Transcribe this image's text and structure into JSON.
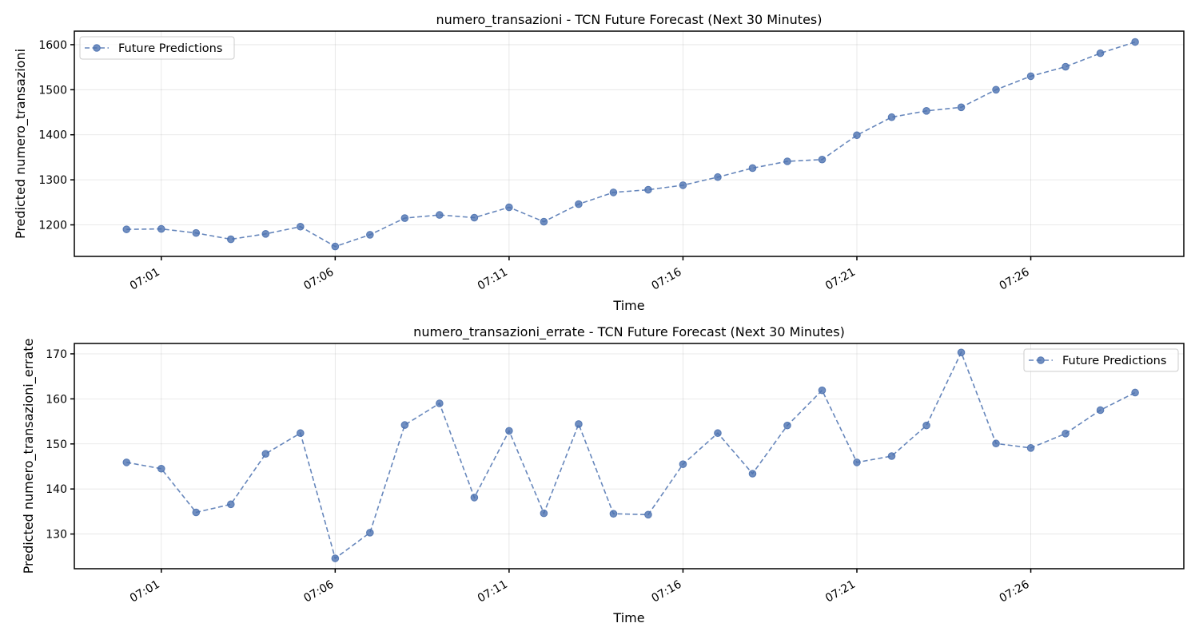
{
  "colors": {
    "series": "#4c72b0"
  },
  "chart_data": [
    {
      "type": "line",
      "title": "numero_transazioni - TCN Future Forecast (Next 30 Minutes)",
      "xlabel": "Time",
      "ylabel": "Predicted numero_transazioni",
      "x": [
        "07:00",
        "07:01",
        "07:02",
        "07:03",
        "07:04",
        "07:05",
        "07:06",
        "07:07",
        "07:08",
        "07:09",
        "07:10",
        "07:11",
        "07:12",
        "07:13",
        "07:14",
        "07:15",
        "07:16",
        "07:17",
        "07:18",
        "07:19",
        "07:20",
        "07:21",
        "07:22",
        "07:23",
        "07:24",
        "07:25",
        "07:26",
        "07:27",
        "07:28",
        "07:29"
      ],
      "x_ticks": [
        "07:01",
        "07:06",
        "07:11",
        "07:16",
        "07:21",
        "07:26"
      ],
      "ylim": [
        1130,
        1630
      ],
      "y_ticks": [
        1200,
        1300,
        1400,
        1500,
        1600
      ],
      "grid": true,
      "legend_position": "upper left",
      "series": [
        {
          "name": "Future Predictions",
          "values": [
            1190,
            1191,
            1182,
            1168,
            1180,
            1196,
            1152,
            1178,
            1215,
            1222,
            1216,
            1239,
            1207,
            1246,
            1272,
            1278,
            1288,
            1306,
            1326,
            1341,
            1345,
            1399,
            1439,
            1453,
            1461,
            1500,
            1530,
            1551,
            1581,
            1606
          ]
        }
      ]
    },
    {
      "type": "line",
      "title": "numero_transazioni_errate - TCN Future Forecast (Next 30 Minutes)",
      "xlabel": "Time",
      "ylabel": "Predicted numero_transazioni_errate",
      "x": [
        "07:00",
        "07:01",
        "07:02",
        "07:03",
        "07:04",
        "07:05",
        "07:06",
        "07:07",
        "07:08",
        "07:09",
        "07:10",
        "07:11",
        "07:12",
        "07:13",
        "07:14",
        "07:15",
        "07:16",
        "07:17",
        "07:18",
        "07:19",
        "07:20",
        "07:21",
        "07:22",
        "07:23",
        "07:24",
        "07:25",
        "07:26",
        "07:27",
        "07:28",
        "07:29"
      ],
      "x_ticks": [
        "07:01",
        "07:06",
        "07:11",
        "07:16",
        "07:21",
        "07:26"
      ],
      "ylim": [
        122.3,
        172.3
      ],
      "y_ticks": [
        130,
        140,
        150,
        160,
        170
      ],
      "grid": true,
      "legend_position": "upper right",
      "series": [
        {
          "name": "Future Predictions",
          "values": [
            145.9,
            144.5,
            134.8,
            136.6,
            147.8,
            152.4,
            124.6,
            130.3,
            154.2,
            159.0,
            138.1,
            152.9,
            134.6,
            154.4,
            134.5,
            134.3,
            145.5,
            152.4,
            143.4,
            154.1,
            161.9,
            145.9,
            147.3,
            154.1,
            170.3,
            150.1,
            149.1,
            152.3,
            157.5,
            161.4
          ]
        }
      ]
    }
  ]
}
